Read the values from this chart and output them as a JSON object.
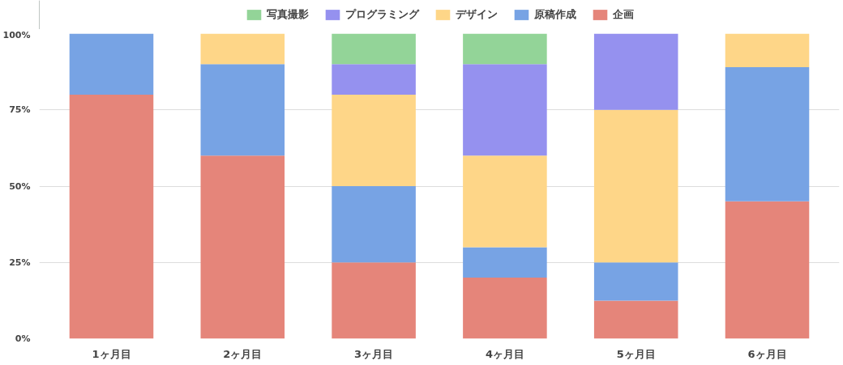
{
  "chart_data": {
    "type": "bar",
    "stacked": true,
    "categories": [
      "1ヶ月目",
      "2ヶ月目",
      "3ヶ月目",
      "4ヶ月目",
      "5ヶ月目",
      "6ヶ月目"
    ],
    "series": [
      {
        "name": "企画",
        "color": "#e5857a",
        "values": [
          80,
          60,
          25,
          20,
          12.5,
          45
        ]
      },
      {
        "name": "原稿作成",
        "color": "#77a3e4",
        "values": [
          20,
          30,
          25,
          10,
          12.5,
          44
        ]
      },
      {
        "name": "デザイン",
        "color": "#fed688",
        "values": [
          0,
          10,
          30,
          30,
          50,
          11
        ]
      },
      {
        "name": "プログラミング",
        "color": "#9591ef",
        "values": [
          0,
          0,
          10,
          30,
          25,
          0
        ]
      },
      {
        "name": "写真撮影",
        "color": "#93d498",
        "values": [
          0,
          0,
          10,
          10,
          0,
          0
        ]
      }
    ],
    "ylim": [
      0,
      100
    ],
    "yticks": [
      {
        "value": 0,
        "label": "0%"
      },
      {
        "value": 25,
        "label": "25%"
      },
      {
        "value": 50,
        "label": "50%"
      },
      {
        "value": 75,
        "label": "75%"
      },
      {
        "value": 100,
        "label": "100%"
      }
    ],
    "grid": "y",
    "legend": "top"
  }
}
